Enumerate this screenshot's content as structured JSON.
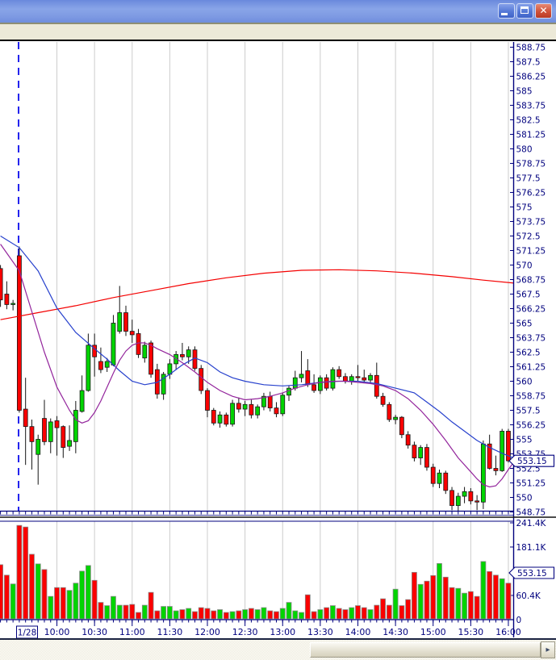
{
  "window": {
    "title": "",
    "close_glyph": "✕",
    "icons": [
      "minimize-icon",
      "maximize-icon",
      "close-icon"
    ]
  },
  "scrollbar": {
    "right_arrow_glyph": "▸"
  },
  "chart_data": {
    "type": "candlestick",
    "title": "",
    "interval_minutes": 5,
    "last_price": "553.15",
    "session_break_after_index": 2,
    "date_label": "1/28",
    "colors": {
      "up": "#00d400",
      "down": "#fa0000",
      "wick": "#141414",
      "volume_outline": "#8a8a8a",
      "grid": "#cccccc",
      "axis": "#00007e",
      "separator": "#111111",
      "session_line": "#2222ee",
      "background": "#ffffff"
    },
    "price_axis": {
      "min": 548.75,
      "max": 588.75,
      "step": 1.25,
      "tick_labels": [
        "588.75",
        "587.5",
        "586.25",
        "585",
        "583.75",
        "582.5",
        "581.25",
        "580",
        "578.75",
        "577.5",
        "576.25",
        "575",
        "573.75",
        "572.5",
        "571.25",
        "570",
        "568.75",
        "567.5",
        "566.25",
        "565",
        "563.75",
        "562.5",
        "561.25",
        "560",
        "558.75",
        "557.5",
        "556.25",
        "555",
        "553.75",
        "552.5",
        "551.25",
        "550",
        "548.75"
      ],
      "last_price_badge": "553.15"
    },
    "volume_axis": {
      "max_value_k": 241.4,
      "ticks": [
        {
          "label": "241.4K",
          "value_k": 241.4
        },
        {
          "label": "181.1K",
          "value_k": 181.1
        },
        {
          "label": "60.4K",
          "value_k": 60.4
        },
        {
          "label": "0",
          "value_k": 0
        }
      ],
      "last_price_badge": "553.15"
    },
    "time_axis": {
      "date_label": "1/28",
      "labels": [
        "10:00",
        "10:30",
        "11:00",
        "11:30",
        "12:00",
        "12:30",
        "13:00",
        "13:30",
        "14:00",
        "14:30",
        "15:00",
        "15:30",
        "16:00"
      ],
      "first_label_bar_index": 9,
      "bars_per_label": 6
    },
    "candles_format": [
      "time",
      "open",
      "high",
      "low",
      "close",
      "volume_k"
    ],
    "candles": [
      [
        "09:15",
        569.7,
        570,
        566.4,
        567,
        137
      ],
      [
        "09:20",
        567.5,
        568.6,
        566.2,
        566.6,
        111
      ],
      [
        "09:25",
        566.6,
        567,
        566.1,
        566.7,
        89
      ],
      [
        "09:30",
        570.8,
        571.6,
        557.3,
        557.5,
        235
      ],
      [
        "09:35",
        557.6,
        560.3,
        552.8,
        556.1,
        231
      ],
      [
        "09:40",
        556.1,
        556.7,
        552.4,
        554.8,
        163
      ],
      [
        "09:45",
        553.7,
        555.4,
        551.1,
        555,
        139
      ],
      [
        "09:50",
        556.8,
        558.4,
        554.5,
        554.8,
        125
      ],
      [
        "09:55",
        554.8,
        556.8,
        553.8,
        556.5,
        58
      ],
      [
        "10:00",
        556.6,
        557,
        553.6,
        556,
        80
      ],
      [
        "10:05",
        556.1,
        556.2,
        553.4,
        554.3,
        80
      ],
      [
        "10:10",
        554.4,
        556.2,
        554,
        554.9,
        73
      ],
      [
        "10:15",
        554.8,
        558.3,
        553.8,
        557.5,
        91
      ],
      [
        "10:20",
        557.4,
        560.5,
        557.3,
        559.2,
        121
      ],
      [
        "10:25",
        559.2,
        564.1,
        559.1,
        563.1,
        135
      ],
      [
        "10:30",
        563.1,
        564.1,
        560.4,
        562.1,
        98
      ],
      [
        "10:35",
        561.7,
        562.9,
        560.7,
        561,
        43
      ],
      [
        "10:40",
        561.2,
        562,
        560.8,
        561.7,
        35
      ],
      [
        "10:45",
        561.4,
        565.7,
        561.3,
        565,
        58
      ],
      [
        "10:50",
        564.3,
        568.2,
        564.1,
        565.9,
        36
      ],
      [
        "10:55",
        565.9,
        566.5,
        563.9,
        564.3,
        36
      ],
      [
        "11:00",
        564.3,
        565.3,
        563.3,
        564,
        38
      ],
      [
        "11:05",
        564.1,
        564.5,
        562,
        562.3,
        18
      ],
      [
        "11:10",
        562,
        563.4,
        561.6,
        563.1,
        36
      ],
      [
        "11:15",
        563.3,
        563.5,
        560.3,
        560.6,
        68
      ],
      [
        "11:20",
        561,
        561.5,
        558.5,
        558.9,
        22
      ],
      [
        "11:25",
        558.9,
        560.8,
        558.4,
        560.6,
        33
      ],
      [
        "11:30",
        560.6,
        561.9,
        560.2,
        561.5,
        33
      ],
      [
        "11:35",
        561.5,
        562.6,
        561,
        562.3,
        22
      ],
      [
        "11:40",
        562.3,
        563.3,
        561.8,
        562.1,
        25
      ],
      [
        "11:45",
        562.1,
        563,
        561.5,
        562.7,
        28
      ],
      [
        "11:50",
        562.7,
        563,
        560.9,
        561.1,
        20
      ],
      [
        "11:55",
        561.1,
        561.4,
        558.9,
        559.2,
        30
      ],
      [
        "12:00",
        559.2,
        559.4,
        556.9,
        557.5,
        28
      ],
      [
        "12:05",
        557.5,
        557.7,
        556.2,
        556.4,
        22
      ],
      [
        "12:10",
        556.4,
        557.4,
        556,
        557.1,
        25
      ],
      [
        "12:15",
        557.1,
        557.3,
        556.1,
        556.3,
        18
      ],
      [
        "12:20",
        556.3,
        558.4,
        556.1,
        558.1,
        20
      ],
      [
        "12:25",
        558.1,
        558.6,
        557.3,
        557.6,
        22
      ],
      [
        "12:30",
        557.6,
        558.3,
        557,
        558,
        25
      ],
      [
        "12:35",
        558,
        558.4,
        556.8,
        557.1,
        28
      ],
      [
        "12:40",
        557.1,
        558,
        556.8,
        557.8,
        25
      ],
      [
        "12:45",
        557.8,
        559,
        557.5,
        558.7,
        30
      ],
      [
        "12:50",
        558.7,
        559.1,
        557.4,
        557.7,
        22
      ],
      [
        "12:55",
        557.7,
        558.2,
        556.9,
        557.2,
        20
      ],
      [
        "13:00",
        557.2,
        559,
        557,
        558.8,
        28
      ],
      [
        "13:05",
        558.8,
        559.6,
        558.3,
        559.4,
        43
      ],
      [
        "13:10",
        559.4,
        560.9,
        559.2,
        560.3,
        22
      ],
      [
        "13:15",
        560.3,
        562.6,
        559.9,
        560.6,
        18
      ],
      [
        "13:20",
        560.9,
        561.9,
        559.5,
        559.7,
        62
      ],
      [
        "13:25",
        559.7,
        560.6,
        559,
        559.2,
        20
      ],
      [
        "13:30",
        559.2,
        560.5,
        558.9,
        560.3,
        25
      ],
      [
        "13:35",
        560.3,
        560.6,
        559.2,
        559.4,
        30
      ],
      [
        "13:40",
        559.4,
        561.2,
        559.2,
        561,
        35
      ],
      [
        "13:45",
        561,
        561.3,
        560.2,
        560.4,
        28
      ],
      [
        "13:50",
        560.4,
        560.7,
        559.8,
        560,
        25
      ],
      [
        "13:55",
        560,
        560.6,
        559.7,
        560.4,
        30
      ],
      [
        "14:00",
        560.4,
        561.4,
        560,
        560.3,
        35
      ],
      [
        "14:05",
        560.3,
        561,
        559.9,
        560.1,
        30
      ],
      [
        "14:10",
        560.1,
        560.7,
        559.8,
        560.5,
        25
      ],
      [
        "14:15",
        560.5,
        561.6,
        558.5,
        558.7,
        36
      ],
      [
        "14:20",
        558.7,
        559,
        557.8,
        558,
        52
      ],
      [
        "14:25",
        558,
        558.2,
        556.5,
        556.7,
        36
      ],
      [
        "14:30",
        556.7,
        557.1,
        556.3,
        556.9,
        76
      ],
      [
        "14:35",
        556.9,
        557,
        555.1,
        555.4,
        35
      ],
      [
        "14:40",
        555.4,
        555.7,
        554.2,
        554.5,
        50
      ],
      [
        "14:45",
        554.5,
        554.8,
        553.1,
        553.4,
        118
      ],
      [
        "14:50",
        553.4,
        554.5,
        552.8,
        554.3,
        88
      ],
      [
        "14:55",
        554.3,
        554.6,
        552.3,
        552.6,
        96
      ],
      [
        "15:00",
        552.6,
        552.9,
        550.9,
        551.2,
        110
      ],
      [
        "15:05",
        551.2,
        552.4,
        550.8,
        552.1,
        140
      ],
      [
        "15:10",
        552.1,
        552.3,
        550.3,
        550.6,
        106
      ],
      [
        "15:15",
        550.6,
        550.9,
        548.9,
        549.3,
        80
      ],
      [
        "15:20",
        549.3,
        550.4,
        548.8,
        550.1,
        78
      ],
      [
        "15:25",
        550.1,
        550.9,
        549.5,
        550.5,
        66
      ],
      [
        "15:30",
        550.5,
        550.8,
        549.4,
        549.7,
        70
      ],
      [
        "15:35",
        549.7,
        550.2,
        548.9,
        549.6,
        58
      ],
      [
        "15:40",
        549.6,
        554.9,
        549,
        554.6,
        145
      ],
      [
        "15:45",
        554.6,
        555.4,
        552.4,
        552.5,
        120
      ],
      [
        "15:50",
        552.5,
        553.6,
        551.9,
        552.3,
        111
      ],
      [
        "15:55",
        552.3,
        555.9,
        552.2,
        555.7,
        102
      ],
      [
        "16:00",
        555.7,
        555.9,
        553,
        553.15,
        91
      ]
    ],
    "moving_averages": [
      {
        "name": "ma-slow-red",
        "color": "#f40000",
        "points": [
          [
            0,
            565.3
          ],
          [
            6,
            565.9
          ],
          [
            12,
            566.5
          ],
          [
            18,
            567.2
          ],
          [
            24,
            567.8
          ],
          [
            30,
            568.4
          ],
          [
            36,
            568.9
          ],
          [
            42,
            569.3
          ],
          [
            48,
            569.55
          ],
          [
            54,
            569.6
          ],
          [
            60,
            569.5
          ],
          [
            66,
            569.3
          ],
          [
            72,
            569.0
          ],
          [
            77,
            568.7
          ],
          [
            81.8,
            568.45
          ]
        ]
      },
      {
        "name": "ma-medium-blue",
        "color": "#2741cd",
        "points": [
          [
            0,
            572.5
          ],
          [
            3,
            571.5
          ],
          [
            6,
            569.5
          ],
          [
            9,
            566.3
          ],
          [
            12,
            564.2
          ],
          [
            15,
            562.8
          ],
          [
            17,
            561.9
          ],
          [
            19,
            560.9
          ],
          [
            21,
            560.0
          ],
          [
            23,
            559.7
          ],
          [
            25,
            559.9
          ],
          [
            27,
            560.6
          ],
          [
            29,
            561.4
          ],
          [
            31,
            562.0
          ],
          [
            33,
            561.6
          ],
          [
            35,
            560.8
          ],
          [
            37,
            560.3
          ],
          [
            39,
            560.0
          ],
          [
            42,
            559.7
          ],
          [
            45,
            559.6
          ],
          [
            48,
            559.7
          ],
          [
            51,
            559.9
          ],
          [
            54,
            560.0
          ],
          [
            57,
            560.0
          ],
          [
            60,
            559.8
          ],
          [
            63,
            559.4
          ],
          [
            66,
            559.0
          ],
          [
            68,
            558.2
          ],
          [
            70,
            557.4
          ],
          [
            72,
            556.5
          ],
          [
            74,
            555.7
          ],
          [
            76,
            554.9
          ],
          [
            78,
            554.3
          ],
          [
            80,
            553.8
          ],
          [
            81.8,
            553.4
          ]
        ]
      },
      {
        "name": "ma-fast-purple",
        "color": "#93259c",
        "points": [
          [
            0,
            571.8
          ],
          [
            3,
            569.5
          ],
          [
            5,
            566.0
          ],
          [
            7,
            562.5
          ],
          [
            9,
            559.5
          ],
          [
            11,
            557.5
          ],
          [
            12,
            556.7
          ],
          [
            13,
            556.4
          ],
          [
            14,
            556.6
          ],
          [
            15,
            557.3
          ],
          [
            16,
            558.3
          ],
          [
            17,
            559.5
          ],
          [
            18,
            560.7
          ],
          [
            19,
            561.8
          ],
          [
            20,
            562.6
          ],
          [
            21,
            563.1
          ],
          [
            22,
            563.3
          ],
          [
            23,
            563.3
          ],
          [
            24,
            563.1
          ],
          [
            25,
            562.8
          ],
          [
            27,
            562.3
          ],
          [
            29,
            561.6
          ],
          [
            31,
            560.8
          ],
          [
            33,
            559.9
          ],
          [
            35,
            559.2
          ],
          [
            37,
            558.7
          ],
          [
            39,
            558.4
          ],
          [
            41,
            558.5
          ],
          [
            43,
            558.7
          ],
          [
            45,
            559.0
          ],
          [
            47,
            559.4
          ],
          [
            49,
            559.7
          ],
          [
            51,
            559.9
          ],
          [
            53,
            560.0
          ],
          [
            55,
            560.0
          ],
          [
            57,
            559.9
          ],
          [
            59,
            559.8
          ],
          [
            61,
            559.6
          ],
          [
            63,
            559.2
          ],
          [
            65,
            558.5
          ],
          [
            67,
            557.5
          ],
          [
            69,
            556.3
          ],
          [
            71,
            554.9
          ],
          [
            73,
            553.4
          ],
          [
            75,
            552.2
          ],
          [
            76,
            551.6
          ],
          [
            77,
            551.1
          ],
          [
            78,
            550.9
          ],
          [
            79,
            551.0
          ],
          [
            80,
            551.6
          ],
          [
            81,
            552.4
          ],
          [
            81.8,
            553.0
          ]
        ]
      }
    ]
  }
}
